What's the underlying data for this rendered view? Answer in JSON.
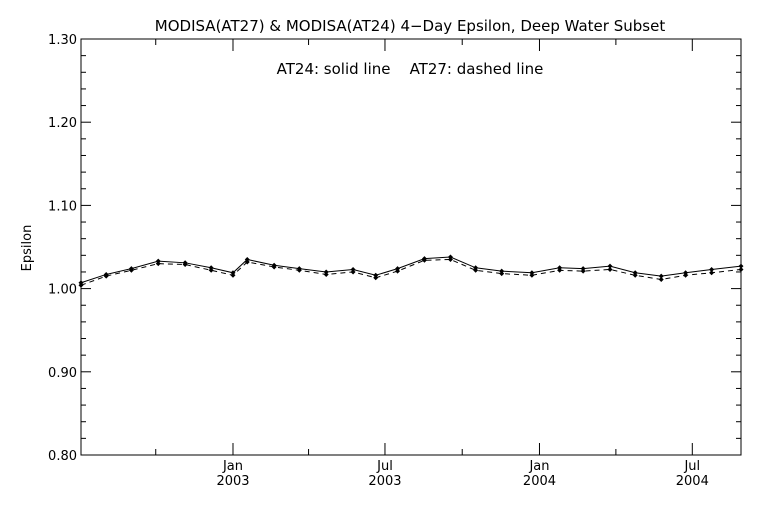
{
  "chart_data": {
    "type": "line",
    "title": "MODISA(AT27) & MODISA(AT24) 4−Day Epsilon, Deep Water Subset",
    "annotation": "AT24: solid line    AT27: dashed line",
    "xlabel": "",
    "ylabel": "Epsilon",
    "ylim": [
      0.8,
      1.3
    ],
    "xlim": [
      "2002-07-04",
      "2004-08-28"
    ],
    "y_ticks": [
      0.8,
      0.9,
      1.0,
      1.1,
      1.2,
      1.3
    ],
    "y_tick_labels": [
      "0.80",
      "0.90",
      "1.00",
      "1.10",
      "1.20",
      "1.30"
    ],
    "x_ticks": [
      {
        "date": "2003-01-01",
        "month": "Jan",
        "year": "2003"
      },
      {
        "date": "2003-07-01",
        "month": "Jul",
        "year": "2003"
      },
      {
        "date": "2004-01-01",
        "month": "Jan",
        "year": "2004"
      },
      {
        "date": "2004-07-01",
        "month": "Jul",
        "year": "2004"
      }
    ],
    "x_minor_ticks": [
      "2002-10-01",
      "2003-04-01",
      "2003-10-01",
      "2004-04-01"
    ],
    "grid": false,
    "series": [
      {
        "name": "AT24",
        "style": "solid",
        "x": [
          "2002-07-04",
          "2002-08-03",
          "2002-09-02",
          "2002-10-04",
          "2002-11-05",
          "2002-12-06",
          "2003-01-01",
          "2003-01-18",
          "2003-02-19",
          "2003-03-21",
          "2003-04-22",
          "2003-05-24",
          "2003-06-20",
          "2003-07-16",
          "2003-08-17",
          "2003-09-17",
          "2003-10-17",
          "2003-11-17",
          "2003-12-23",
          "2004-01-25",
          "2004-02-22",
          "2004-03-25",
          "2004-04-24",
          "2004-05-25",
          "2004-06-23",
          "2004-07-24",
          "2004-08-28"
        ],
        "y": [
          1.007,
          1.017,
          1.024,
          1.033,
          1.031,
          1.025,
          1.019,
          1.035,
          1.028,
          1.024,
          1.02,
          1.023,
          1.016,
          1.024,
          1.036,
          1.038,
          1.025,
          1.021,
          1.019,
          1.025,
          1.024,
          1.027,
          1.019,
          1.015,
          1.019,
          1.023,
          1.027
        ]
      },
      {
        "name": "AT27",
        "style": "dashed",
        "x": [
          "2002-07-04",
          "2002-08-03",
          "2002-09-02",
          "2002-10-04",
          "2002-11-05",
          "2002-12-06",
          "2003-01-01",
          "2003-01-18",
          "2003-02-19",
          "2003-03-21",
          "2003-04-22",
          "2003-05-24",
          "2003-06-20",
          "2003-07-16",
          "2003-08-17",
          "2003-09-17",
          "2003-10-17",
          "2003-11-17",
          "2003-12-23",
          "2004-01-25",
          "2004-02-22",
          "2004-03-25",
          "2004-04-24",
          "2004-05-25",
          "2004-06-23",
          "2004-07-24",
          "2004-08-28"
        ],
        "y": [
          1.004,
          1.015,
          1.022,
          1.03,
          1.029,
          1.022,
          1.016,
          1.032,
          1.026,
          1.022,
          1.017,
          1.02,
          1.013,
          1.021,
          1.034,
          1.035,
          1.022,
          1.018,
          1.016,
          1.022,
          1.021,
          1.023,
          1.016,
          1.011,
          1.016,
          1.019,
          1.023
        ]
      }
    ]
  }
}
